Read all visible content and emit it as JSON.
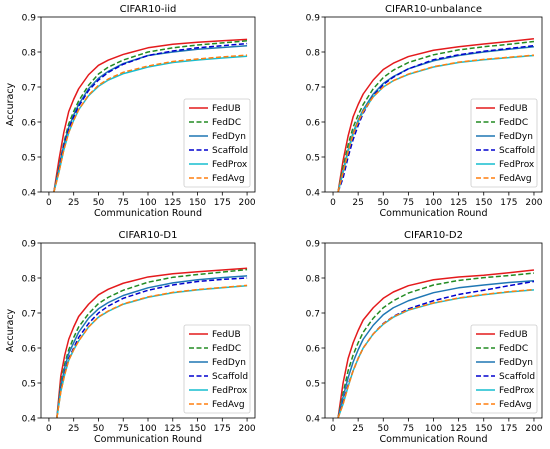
{
  "chart_data": [
    {
      "type": "line",
      "title": "CIFAR10-iid",
      "xlabel": "Communication Round",
      "ylabel": "Accuracy",
      "xlim": [
        -8,
        208
      ],
      "ylim": [
        0.4,
        0.9
      ],
      "xticks": [
        "0",
        "25",
        "50",
        "75",
        "100",
        "125",
        "150",
        "175",
        "200"
      ],
      "yticks": [
        "0.4",
        "0.5",
        "0.6",
        "0.7",
        "0.8",
        "0.9"
      ],
      "grid": false,
      "legend": "lower-right",
      "x": [
        5,
        10,
        15,
        20,
        25,
        30,
        40,
        50,
        60,
        75,
        100,
        125,
        150,
        175,
        200
      ],
      "series": [
        {
          "name": "FedUB",
          "color": "#e41a1c",
          "dash": "solid",
          "values": [
            0.4,
            0.49,
            0.57,
            0.63,
            0.665,
            0.695,
            0.735,
            0.762,
            0.777,
            0.793,
            0.812,
            0.822,
            0.828,
            0.832,
            0.836
          ]
        },
        {
          "name": "FedDC",
          "color": "#228b22",
          "dash": "dashed",
          "values": [
            0.4,
            0.47,
            0.54,
            0.595,
            0.63,
            0.66,
            0.705,
            0.737,
            0.757,
            0.777,
            0.8,
            0.812,
            0.82,
            0.826,
            0.832
          ]
        },
        {
          "name": "FedDyn",
          "color": "#1f77b4",
          "dash": "solid",
          "values": [
            0.4,
            0.465,
            0.535,
            0.585,
            0.62,
            0.65,
            0.695,
            0.725,
            0.745,
            0.767,
            0.79,
            0.8,
            0.808,
            0.813,
            0.818
          ]
        },
        {
          "name": "Scaffold",
          "color": "#0000cd",
          "dash": "dashed",
          "values": [
            0.4,
            0.46,
            0.53,
            0.58,
            0.615,
            0.645,
            0.69,
            0.72,
            0.742,
            0.765,
            0.79,
            0.803,
            0.812,
            0.818,
            0.824
          ]
        },
        {
          "name": "FedProx",
          "color": "#17becf",
          "dash": "solid",
          "values": [
            0.4,
            0.455,
            0.52,
            0.57,
            0.605,
            0.635,
            0.675,
            0.702,
            0.72,
            0.738,
            0.757,
            0.77,
            0.777,
            0.783,
            0.788
          ]
        },
        {
          "name": "FedAvg",
          "color": "#ff7f0e",
          "dash": "dashed",
          "values": [
            0.4,
            0.455,
            0.52,
            0.57,
            0.605,
            0.635,
            0.677,
            0.705,
            0.723,
            0.742,
            0.76,
            0.773,
            0.78,
            0.786,
            0.791
          ]
        }
      ]
    },
    {
      "type": "line",
      "title": "CIFAR10-unbalance",
      "xlabel": "Communication Round",
      "ylabel": "",
      "xlim": [
        -8,
        208
      ],
      "ylim": [
        0.4,
        0.9
      ],
      "xticks": [
        "0",
        "25",
        "50",
        "75",
        "100",
        "125",
        "150",
        "175",
        "200"
      ],
      "yticks": [
        "0.4",
        "0.5",
        "0.6",
        "0.7",
        "0.8",
        "0.9"
      ],
      "grid": false,
      "legend": "lower-right",
      "x": [
        5,
        10,
        15,
        20,
        25,
        30,
        40,
        50,
        60,
        75,
        100,
        125,
        150,
        175,
        200
      ],
      "series": [
        {
          "name": "FedUB",
          "color": "#e41a1c",
          "dash": "solid",
          "values": [
            0.4,
            0.49,
            0.56,
            0.615,
            0.65,
            0.68,
            0.72,
            0.75,
            0.768,
            0.787,
            0.805,
            0.815,
            0.823,
            0.83,
            0.838
          ]
        },
        {
          "name": "FedDC",
          "color": "#228b22",
          "dash": "dashed",
          "values": [
            0.4,
            0.47,
            0.535,
            0.585,
            0.62,
            0.65,
            0.695,
            0.727,
            0.748,
            0.77,
            0.792,
            0.806,
            0.815,
            0.822,
            0.83
          ]
        },
        {
          "name": "FedDyn",
          "color": "#1f77b4",
          "dash": "solid",
          "values": [
            0.4,
            0.46,
            0.52,
            0.57,
            0.605,
            0.635,
            0.68,
            0.71,
            0.73,
            0.752,
            0.775,
            0.79,
            0.8,
            0.808,
            0.815
          ]
        },
        {
          "name": "Scaffold",
          "color": "#0000cd",
          "dash": "dashed",
          "values": [
            0.4,
            0.44,
            0.5,
            0.55,
            0.59,
            0.625,
            0.675,
            0.707,
            0.728,
            0.752,
            0.778,
            0.792,
            0.802,
            0.81,
            0.818
          ]
        },
        {
          "name": "FedProx",
          "color": "#17becf",
          "dash": "solid",
          "values": [
            0.4,
            0.455,
            0.515,
            0.565,
            0.6,
            0.63,
            0.672,
            0.7,
            0.718,
            0.736,
            0.757,
            0.77,
            0.778,
            0.784,
            0.79
          ]
        },
        {
          "name": "FedAvg",
          "color": "#ff7f0e",
          "dash": "dashed",
          "values": [
            0.4,
            0.455,
            0.515,
            0.565,
            0.6,
            0.63,
            0.672,
            0.7,
            0.718,
            0.737,
            0.758,
            0.771,
            0.779,
            0.785,
            0.791
          ]
        }
      ]
    },
    {
      "type": "line",
      "title": "CIFAR10-D1",
      "xlabel": "Communication Round",
      "ylabel": "Accuracy",
      "xlim": [
        -8,
        208
      ],
      "ylim": [
        0.4,
        0.9
      ],
      "xticks": [
        "0",
        "25",
        "50",
        "75",
        "100",
        "125",
        "150",
        "175",
        "200"
      ],
      "yticks": [
        "0.4",
        "0.5",
        "0.6",
        "0.7",
        "0.8",
        "0.9"
      ],
      "grid": false,
      "legend": "lower-right",
      "x": [
        8,
        12,
        16,
        20,
        25,
        30,
        40,
        50,
        60,
        75,
        100,
        125,
        150,
        175,
        200
      ],
      "series": [
        {
          "name": "FedUB",
          "color": "#e41a1c",
          "dash": "solid",
          "values": [
            0.4,
            0.52,
            0.58,
            0.625,
            0.66,
            0.69,
            0.725,
            0.752,
            0.768,
            0.785,
            0.803,
            0.812,
            0.818,
            0.823,
            0.828
          ]
        },
        {
          "name": "FedDC",
          "color": "#228b22",
          "dash": "dashed",
          "values": [
            0.4,
            0.5,
            0.555,
            0.595,
            0.63,
            0.66,
            0.698,
            0.727,
            0.745,
            0.765,
            0.788,
            0.802,
            0.81,
            0.817,
            0.824
          ]
        },
        {
          "name": "FedDyn",
          "color": "#1f77b4",
          "dash": "solid",
          "values": [
            0.4,
            0.49,
            0.545,
            0.585,
            0.615,
            0.645,
            0.685,
            0.712,
            0.73,
            0.75,
            0.772,
            0.786,
            0.795,
            0.801,
            0.806
          ]
        },
        {
          "name": "Scaffold",
          "color": "#0000cd",
          "dash": "dashed",
          "values": [
            0.4,
            0.48,
            0.53,
            0.57,
            0.6,
            0.63,
            0.67,
            0.7,
            0.72,
            0.742,
            0.765,
            0.78,
            0.79,
            0.796,
            0.8
          ]
        },
        {
          "name": "FedProx",
          "color": "#17becf",
          "dash": "solid",
          "values": [
            0.4,
            0.475,
            0.525,
            0.565,
            0.595,
            0.62,
            0.66,
            0.688,
            0.705,
            0.725,
            0.745,
            0.758,
            0.766,
            0.772,
            0.778
          ]
        },
        {
          "name": "FedAvg",
          "color": "#ff7f0e",
          "dash": "dashed",
          "values": [
            0.4,
            0.475,
            0.525,
            0.565,
            0.595,
            0.62,
            0.66,
            0.689,
            0.706,
            0.726,
            0.746,
            0.759,
            0.767,
            0.773,
            0.779
          ]
        }
      ]
    },
    {
      "type": "line",
      "title": "CIFAR10-D2",
      "xlabel": "Communication Round",
      "ylabel": "",
      "xlim": [
        -8,
        208
      ],
      "ylim": [
        0.4,
        0.9
      ],
      "xticks": [
        "0",
        "25",
        "50",
        "75",
        "100",
        "125",
        "150",
        "175",
        "200"
      ],
      "yticks": [
        "0.4",
        "0.5",
        "0.6",
        "0.7",
        "0.8",
        "0.9"
      ],
      "grid": false,
      "legend": "lower-right",
      "x": [
        5,
        10,
        15,
        20,
        25,
        30,
        40,
        50,
        60,
        75,
        100,
        125,
        150,
        175,
        200
      ],
      "series": [
        {
          "name": "FedUB",
          "color": "#e41a1c",
          "dash": "solid",
          "values": [
            0.4,
            0.5,
            0.57,
            0.615,
            0.65,
            0.68,
            0.715,
            0.742,
            0.76,
            0.778,
            0.795,
            0.803,
            0.808,
            0.815,
            0.823
          ]
        },
        {
          "name": "FedDC",
          "color": "#228b22",
          "dash": "dashed",
          "values": [
            0.4,
            0.47,
            0.535,
            0.58,
            0.615,
            0.645,
            0.685,
            0.715,
            0.735,
            0.757,
            0.78,
            0.793,
            0.801,
            0.807,
            0.814
          ]
        },
        {
          "name": "FedDyn",
          "color": "#1f77b4",
          "dash": "solid",
          "values": [
            0.4,
            0.46,
            0.515,
            0.56,
            0.595,
            0.625,
            0.665,
            0.695,
            0.715,
            0.735,
            0.758,
            0.772,
            0.78,
            0.787,
            0.792
          ]
        },
        {
          "name": "Scaffold",
          "color": "#0000cd",
          "dash": "dashed",
          "values": [
            0.4,
            0.445,
            0.495,
            0.535,
            0.57,
            0.6,
            0.64,
            0.67,
            0.69,
            0.712,
            0.735,
            0.753,
            0.765,
            0.778,
            0.79
          ]
        },
        {
          "name": "FedProx",
          "color": "#17becf",
          "dash": "solid",
          "values": [
            0.4,
            0.44,
            0.49,
            0.535,
            0.57,
            0.6,
            0.64,
            0.668,
            0.688,
            0.708,
            0.728,
            0.742,
            0.752,
            0.76,
            0.766
          ]
        },
        {
          "name": "FedAvg",
          "color": "#ff7f0e",
          "dash": "dashed",
          "values": [
            0.4,
            0.44,
            0.49,
            0.535,
            0.57,
            0.6,
            0.64,
            0.669,
            0.689,
            0.709,
            0.729,
            0.743,
            0.753,
            0.761,
            0.767
          ]
        }
      ]
    }
  ]
}
